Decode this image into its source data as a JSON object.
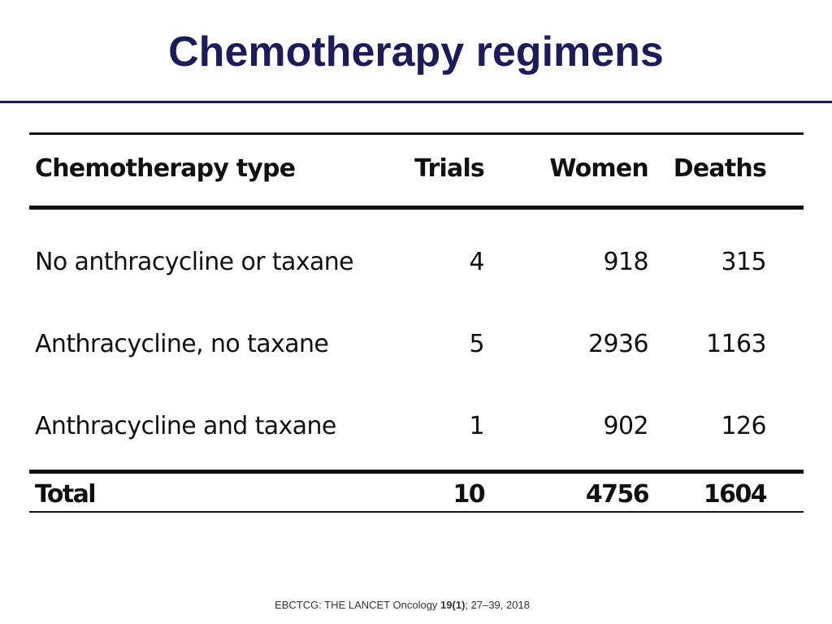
{
  "slide": {
    "title": "Chemotherapy regimens"
  },
  "table": {
    "headers": {
      "type": "Chemotherapy type",
      "trials": "Trials",
      "women": "Women",
      "deaths": "Deaths"
    },
    "rows": [
      {
        "type": "No anthracycline or taxane",
        "trials": "4",
        "women": "918",
        "deaths": "315"
      },
      {
        "type": "Anthracycline, no taxane",
        "trials": "5",
        "women": "2936",
        "deaths": "1163"
      },
      {
        "type": "Anthracycline and taxane",
        "trials": "1",
        "women": "902",
        "deaths": "126"
      }
    ],
    "total": {
      "type": "Total",
      "trials": "10",
      "women": "4756",
      "deaths": "1604"
    }
  },
  "citation": {
    "prefix": "EBCTCG: THE LANCET Oncology ",
    "volume": "19(1)",
    "suffix": ";  27–39, 2018"
  }
}
